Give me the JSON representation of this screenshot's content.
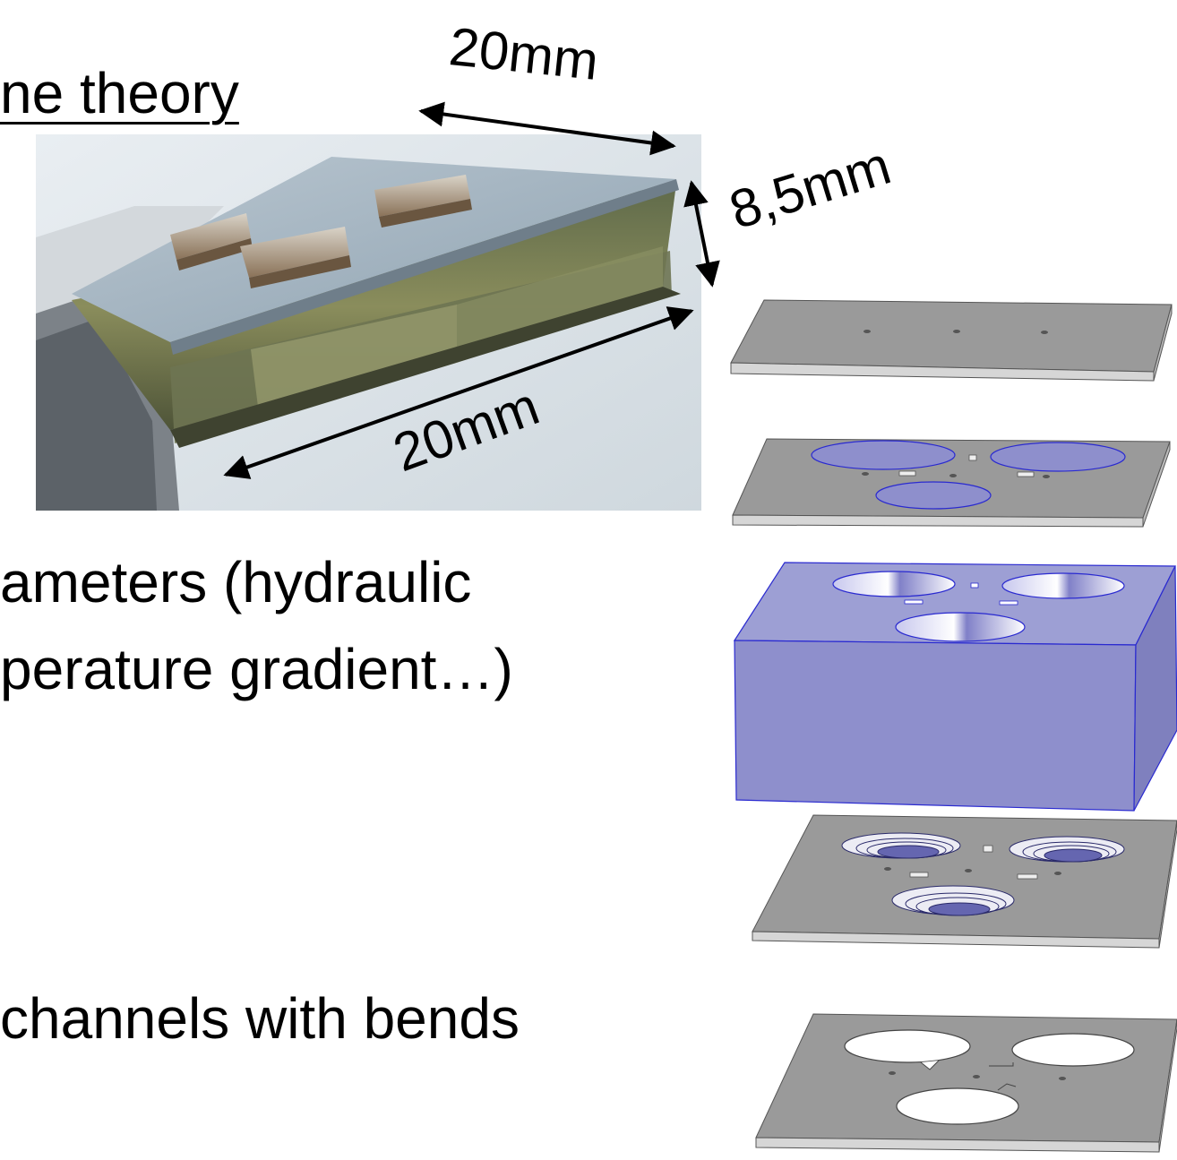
{
  "slide": {
    "title_fragment": "ne theory",
    "bullets": [
      "ameters (hydraulic",
      "perature gradient…)",
      "channels with bends"
    ]
  },
  "dimensions": {
    "top_width": "20mm",
    "height": "8,5mm",
    "bottom_length": "20mm"
  },
  "colors": {
    "plate_top": "#9a9a9a",
    "plate_side": "#d6d6d6",
    "reservoir_block": "#8e8fcc",
    "reservoir_edge": "#2a2ad0",
    "arrow": "#000000"
  }
}
